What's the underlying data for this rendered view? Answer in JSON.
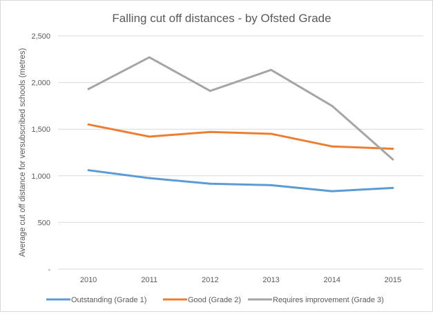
{
  "chart_data": {
    "type": "line",
    "title": "Falling cut off distances - by Ofsted Grade",
    "xlabel": "",
    "ylabel": "Average cut off distance for versubscribed schools (metres)",
    "categories": [
      "2010",
      "2011",
      "2012",
      "2013",
      "2014",
      "2015"
    ],
    "ylim": [
      0,
      2500
    ],
    "yticks": [
      0,
      500,
      1000,
      1500,
      2000,
      2500
    ],
    "ytick_labels": [
      "-",
      "500",
      "1,000",
      "1,500",
      "2,000",
      "2,500"
    ],
    "grid": true,
    "legend_position": "bottom",
    "series": [
      {
        "name": "Outstanding (Grade 1)",
        "color": "#5b9bd5",
        "values": [
          1060,
          975,
          915,
          900,
          835,
          870
        ]
      },
      {
        "name": "Good (Grade 2)",
        "color": "#ed7d31",
        "values": [
          1550,
          1420,
          1470,
          1450,
          1315,
          1290
        ]
      },
      {
        "name": "Requires improvement (Grade 3)",
        "color": "#a5a5a5",
        "values": [
          1930,
          2270,
          1910,
          2135,
          1750,
          1175
        ]
      }
    ]
  }
}
